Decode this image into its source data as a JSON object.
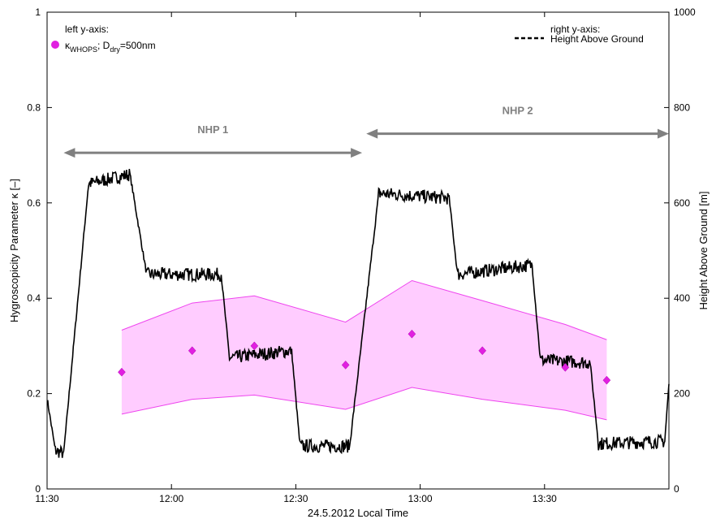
{
  "chart_data": {
    "type": "line",
    "xlabel": "24.5.2012 Local Time",
    "ylabel_left": "Hygroscopicity Parameter κ [–]",
    "ylabel_right": "Height Above Ground [m]",
    "x_range": [
      "11:30",
      "14:00"
    ],
    "x_ticks": [
      "11:30",
      "12:00",
      "12:30",
      "13:00",
      "13:30"
    ],
    "ylim_left": [
      0,
      1
    ],
    "yticks_left": [
      "0",
      "0.2",
      "0.4",
      "0.6",
      "0.8",
      "1"
    ],
    "ylim_right": [
      0,
      1000
    ],
    "yticks_right": [
      "0",
      "200",
      "400",
      "600",
      "800",
      "1000"
    ],
    "legend_left": {
      "header": "left y-axis:",
      "kappa": "κ",
      "kappa_sub": "WHOPS",
      "sep": "; D",
      "d_sub": "dry",
      "tail": "=500nm",
      "color": "#e020e0"
    },
    "legend_right": {
      "header": "right y-axis:",
      "label": "Height Above Ground"
    },
    "kappa_series": {
      "axis": "left",
      "x": [
        "11:48",
        "12:05",
        "12:20",
        "12:42",
        "12:58",
        "13:15",
        "13:35",
        "13:45"
      ],
      "y": [
        0.245,
        0.29,
        0.3,
        0.26,
        0.325,
        0.29,
        0.255,
        0.228
      ],
      "upper": [
        0.333,
        0.39,
        0.405,
        0.35,
        0.437,
        0.395,
        0.345,
        0.313
      ],
      "lower": [
        0.157,
        0.188,
        0.197,
        0.167,
        0.213,
        0.188,
        0.165,
        0.145
      ],
      "marker_color": "#e020e0",
      "band_color": "#ffccff",
      "band_edge_color": "#ee44ee"
    },
    "height_series": {
      "axis": "right",
      "style": "dashed",
      "color": "#000000",
      "segments": [
        {
          "x": "11:30",
          "y": 190
        },
        {
          "x": "11:32",
          "y": 80
        },
        {
          "x": "11:34",
          "y": 75
        },
        {
          "x": "11:40",
          "y": 640
        },
        {
          "x": "11:50",
          "y": 660
        },
        {
          "x": "11:54",
          "y": 450
        },
        {
          "x": "12:12",
          "y": 450
        },
        {
          "x": "12:14",
          "y": 275
        },
        {
          "x": "12:29",
          "y": 290
        },
        {
          "x": "12:31",
          "y": 90
        },
        {
          "x": "12:43",
          "y": 90
        },
        {
          "x": "12:50",
          "y": 620
        },
        {
          "x": "13:07",
          "y": 610
        },
        {
          "x": "13:09",
          "y": 450
        },
        {
          "x": "13:27",
          "y": 470
        },
        {
          "x": "13:29",
          "y": 270
        },
        {
          "x": "13:41",
          "y": 265
        },
        {
          "x": "13:43",
          "y": 95
        },
        {
          "x": "13:59",
          "y": 100
        },
        {
          "x": "14:00",
          "y": 220
        }
      ]
    },
    "annotations": [
      {
        "label": "NHP 1",
        "x_start": "11:34",
        "x_end": "12:46",
        "y_left": 0.705
      },
      {
        "label": "NHP 2",
        "x_start": "12:47",
        "x_end": "14:00",
        "y_left": 0.745
      }
    ],
    "annotation_color": "#808080",
    "grid": false
  }
}
